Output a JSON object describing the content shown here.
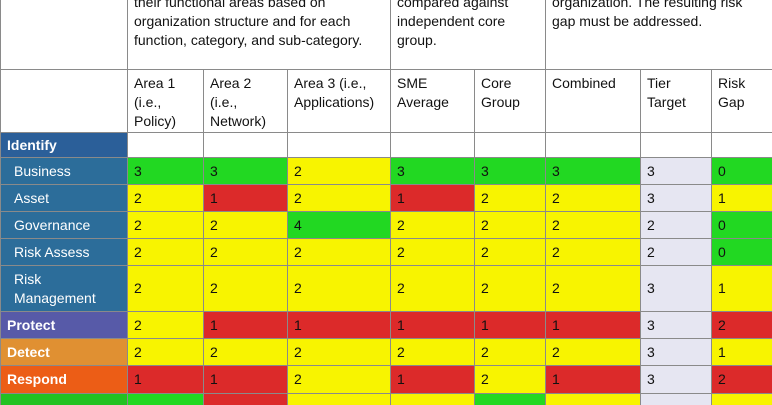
{
  "header": {
    "group1": "their functional areas based on organization structure and for each function, category, and sub-category.",
    "group2": "compared against independent core group.",
    "group3": "organization. The resulting risk gap must be addressed."
  },
  "columns": [
    "Area 1 (i.e., Policy)",
    "Area 2 (i.e., Network)",
    "Area 3 (i.e., Applications)",
    "SME Average",
    "Core Group",
    "Combined",
    "Tier Target",
    "Risk Gap"
  ],
  "colors": {
    "green": "#22d822",
    "yellow": "#f8f400",
    "red": "#dc2a2a",
    "tier": "#e6e6f2",
    "identify": "#2b5f99",
    "sub": "#2c6d9a",
    "protect": "#575aa8",
    "detect": "#e09032",
    "respond": "#ec5d16",
    "recover": "#22c222"
  },
  "rows": [
    {
      "label": "Identify",
      "style": "identify",
      "top": true,
      "empty": true,
      "h": 25,
      "values": [
        "",
        "",
        "",
        "",
        "",
        "",
        "",
        ""
      ],
      "fills": [
        "",
        "",
        "",
        "",
        "",
        "",
        "",
        ""
      ]
    },
    {
      "label": "Business",
      "style": "sub",
      "top": false,
      "h": 27,
      "values": [
        "3",
        "3",
        "2",
        "3",
        "3",
        "3",
        "3",
        "0"
      ],
      "fills": [
        "green",
        "green",
        "yellow",
        "green",
        "green",
        "green",
        "tier",
        "green"
      ]
    },
    {
      "label": "Asset",
      "style": "sub",
      "top": false,
      "h": 27,
      "values": [
        "2",
        "1",
        "2",
        "1",
        "2",
        "2",
        "3",
        "1"
      ],
      "fills": [
        "yellow",
        "red",
        "yellow",
        "red",
        "yellow",
        "yellow",
        "tier",
        "yellow"
      ]
    },
    {
      "label": "Governance",
      "style": "sub",
      "top": false,
      "h": 27,
      "values": [
        "2",
        "2",
        "4",
        "2",
        "2",
        "2",
        "2",
        "0"
      ],
      "fills": [
        "yellow",
        "yellow",
        "green",
        "yellow",
        "yellow",
        "yellow",
        "tier",
        "green"
      ]
    },
    {
      "label": "Risk Assess",
      "style": "sub",
      "top": false,
      "h": 27,
      "values": [
        "2",
        "2",
        "2",
        "2",
        "2",
        "2",
        "2",
        "0"
      ],
      "fills": [
        "yellow",
        "yellow",
        "yellow",
        "yellow",
        "yellow",
        "yellow",
        "tier",
        "green"
      ]
    },
    {
      "label": "Risk Management",
      "style": "sub",
      "top": false,
      "h": 46,
      "values": [
        "2",
        "2",
        "2",
        "2",
        "2",
        "2",
        "3",
        "1"
      ],
      "fills": [
        "yellow",
        "yellow",
        "yellow",
        "yellow",
        "yellow",
        "yellow",
        "tier",
        "yellow"
      ]
    },
    {
      "label": "Protect",
      "style": "protect",
      "top": true,
      "h": 27,
      "values": [
        "2",
        "1",
        "1",
        "1",
        "1",
        "1",
        "3",
        "2"
      ],
      "fills": [
        "yellow",
        "red",
        "red",
        "red",
        "red",
        "red",
        "tier",
        "red"
      ]
    },
    {
      "label": "Detect",
      "style": "detect",
      "top": true,
      "h": 27,
      "values": [
        "2",
        "2",
        "2",
        "2",
        "2",
        "2",
        "3",
        "1"
      ],
      "fills": [
        "yellow",
        "yellow",
        "yellow",
        "yellow",
        "yellow",
        "yellow",
        "tier",
        "yellow"
      ]
    },
    {
      "label": "Respond",
      "style": "respond",
      "top": true,
      "h": 28,
      "values": [
        "1",
        "1",
        "2",
        "1",
        "2",
        "1",
        "3",
        "2"
      ],
      "fills": [
        "red",
        "red",
        "yellow",
        "red",
        "yellow",
        "red",
        "tier",
        "red"
      ]
    },
    {
      "label": "",
      "style": "recover",
      "top": true,
      "h": 27,
      "values": [
        "",
        "",
        "",
        "",
        "",
        "",
        "",
        ""
      ],
      "fills": [
        "green",
        "red",
        "yellow",
        "yellow",
        "green",
        "yellow",
        "tier",
        "yellow"
      ]
    }
  ]
}
